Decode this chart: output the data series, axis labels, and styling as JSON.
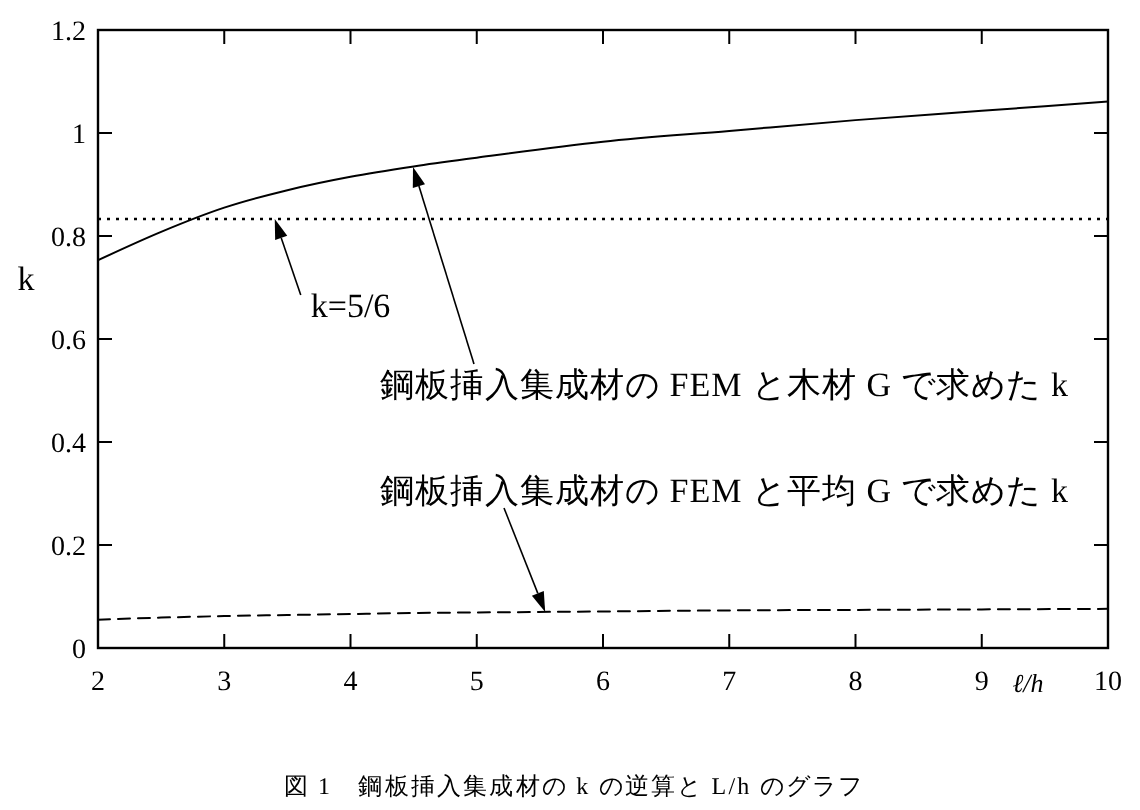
{
  "chart_data": {
    "type": "line",
    "xlabel": "ℓ/h",
    "ylabel": "k",
    "x": [
      2,
      2.5,
      3,
      3.5,
      4,
      4.5,
      5,
      6,
      7,
      8,
      9,
      10
    ],
    "xlim": [
      2,
      10
    ],
    "ylim": [
      0,
      1.2
    ],
    "xticks": [
      2,
      3,
      4,
      5,
      6,
      7,
      8,
      9,
      10
    ],
    "yticks": [
      0,
      0.2,
      0.4,
      0.6,
      0.8,
      1,
      1.2
    ],
    "series": [
      {
        "color": "#000000",
        "line_style": "solid",
        "values": [
          0.753,
          0.808,
          0.855,
          0.889,
          0.915,
          0.935,
          0.952,
          0.983,
          1.004,
          1.025,
          1.043,
          1.061
        ]
      },
      {
        "color": "#000000",
        "line_style": "dashed",
        "values": [
          0.055,
          0.059,
          0.062,
          0.064,
          0.066,
          0.068,
          0.069,
          0.071,
          0.073,
          0.074,
          0.075,
          0.076
        ]
      }
    ],
    "ref_lines": [
      {
        "axis": "y",
        "value": 0.833,
        "line_style": "dotted",
        "color": "#000000"
      }
    ],
    "annotations": [
      {
        "text": "k=5/6",
        "x": 3.4,
        "y": 0.833
      },
      "鋼板挿入集成材の FEM と木材 G で求めた k",
      "鋼板挿入集成材の FEM と平均 G で求めた k",
      "図 1　鋼板挿入集成材の k の逆算と L/h のグラフ"
    ]
  }
}
